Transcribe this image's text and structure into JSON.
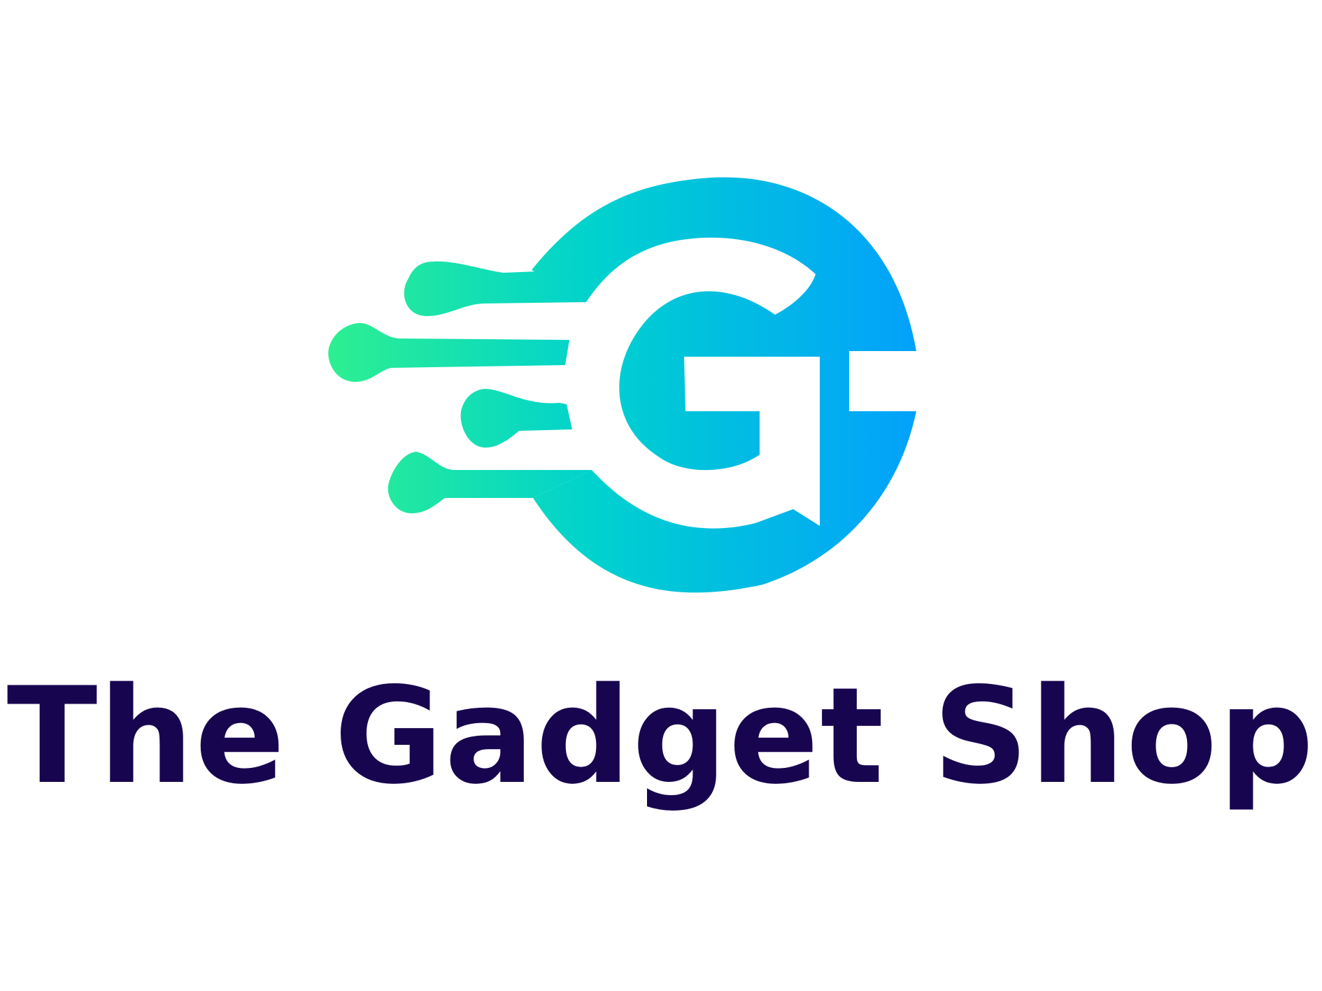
{
  "brand": {
    "name": "The Gadget Shop",
    "logo_icon": "circuit-g-icon"
  },
  "colors": {
    "gradient_start": "#2EF08F",
    "gradient_mid": "#00D2CE",
    "gradient_end": "#03A0FC",
    "text": "#180550",
    "background": "#FFFFFF"
  }
}
